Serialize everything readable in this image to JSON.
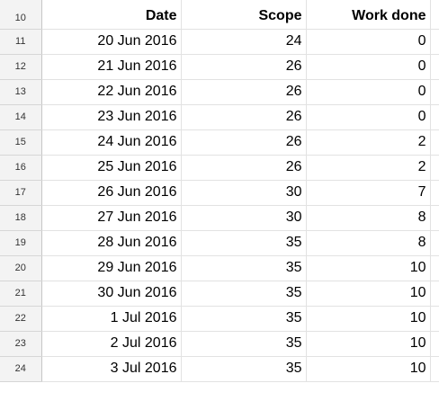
{
  "headers": {
    "row_number": "10",
    "date": "Date",
    "scope": "Scope",
    "work_done": "Work done"
  },
  "rows": [
    {
      "row_number": "11",
      "date": "20 Jun 2016",
      "scope": "24",
      "work_done": "0"
    },
    {
      "row_number": "12",
      "date": "21 Jun 2016",
      "scope": "26",
      "work_done": "0"
    },
    {
      "row_number": "13",
      "date": "22 Jun 2016",
      "scope": "26",
      "work_done": "0"
    },
    {
      "row_number": "14",
      "date": "23 Jun 2016",
      "scope": "26",
      "work_done": "0"
    },
    {
      "row_number": "15",
      "date": "24 Jun 2016",
      "scope": "26",
      "work_done": "2"
    },
    {
      "row_number": "16",
      "date": "25 Jun 2016",
      "scope": "26",
      "work_done": "2"
    },
    {
      "row_number": "17",
      "date": "26 Jun 2016",
      "scope": "30",
      "work_done": "7"
    },
    {
      "row_number": "18",
      "date": "27 Jun 2016",
      "scope": "30",
      "work_done": "8"
    },
    {
      "row_number": "19",
      "date": "28 Jun 2016",
      "scope": "35",
      "work_done": "8"
    },
    {
      "row_number": "20",
      "date": "29 Jun 2016",
      "scope": "35",
      "work_done": "10"
    },
    {
      "row_number": "21",
      "date": "30 Jun 2016",
      "scope": "35",
      "work_done": "10"
    },
    {
      "row_number": "22",
      "date": "1 Jul 2016",
      "scope": "35",
      "work_done": "10"
    },
    {
      "row_number": "23",
      "date": "2 Jul 2016",
      "scope": "35",
      "work_done": "10"
    },
    {
      "row_number": "24",
      "date": "3 Jul 2016",
      "scope": "35",
      "work_done": "10"
    }
  ],
  "colors": {
    "gridline": "#e2e2e2",
    "row_header_bg": "#f3f3f3",
    "text": "#000000"
  }
}
